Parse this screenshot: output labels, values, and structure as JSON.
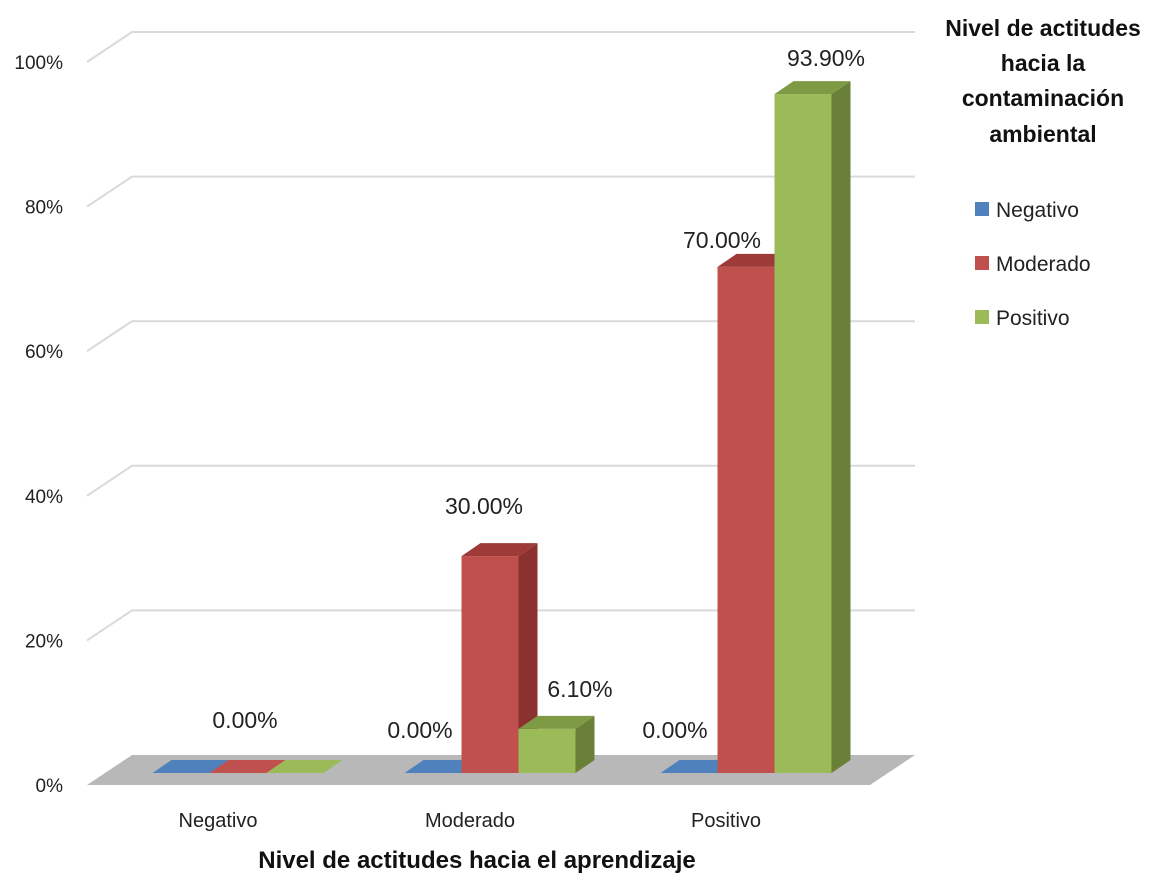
{
  "chart_data": {
    "type": "bar",
    "categories": [
      "Negativo",
      "Moderado",
      "Positivo"
    ],
    "series": [
      {
        "name": "Negativo",
        "values": [
          0.0,
          0.0,
          0.0
        ]
      },
      {
        "name": "Moderado",
        "values": [
          0.0,
          30.0,
          70.0
        ]
      },
      {
        "name": "Positivo",
        "values": [
          0.0,
          6.1,
          93.9
        ]
      }
    ],
    "data_labels": [
      {
        "category": "Negativo",
        "text": "0.00%"
      },
      {
        "category": "Moderado",
        "text": "0.00%"
      },
      {
        "category": "Moderado",
        "text": "30.00%"
      },
      {
        "category": "Moderado",
        "text": "6.10%"
      },
      {
        "category": "Positivo",
        "text": "0.00%"
      },
      {
        "category": "Positivo",
        "text": "70.00%"
      },
      {
        "category": "Positivo",
        "text": "93.90%"
      }
    ],
    "y_ticks": [
      "0%",
      "20%",
      "40%",
      "60%",
      "80%",
      "100%"
    ],
    "ylim": [
      0,
      100
    ],
    "xlabel": "Nivel de actitudes hacia el aprendizaje",
    "ylabel": "",
    "legend_title_lines": [
      "Nivel de actitudes",
      "hacia la",
      "contaminación",
      "ambiental"
    ],
    "legend_position": "right",
    "grid": true,
    "style": "3d-clustered-column",
    "colors": {
      "Negativo": {
        "front": "#4F81BD",
        "top": "#3A65A0",
        "side": "#2E4F7E"
      },
      "Moderado": {
        "front": "#C0504D",
        "top": "#9E3B38",
        "side": "#8B3230"
      },
      "Positivo": {
        "front": "#9BBB59",
        "top": "#7F9A44",
        "side": "#6A7F38"
      },
      "floor": "#B8B8B8",
      "grid": "#D9D9D9"
    }
  }
}
